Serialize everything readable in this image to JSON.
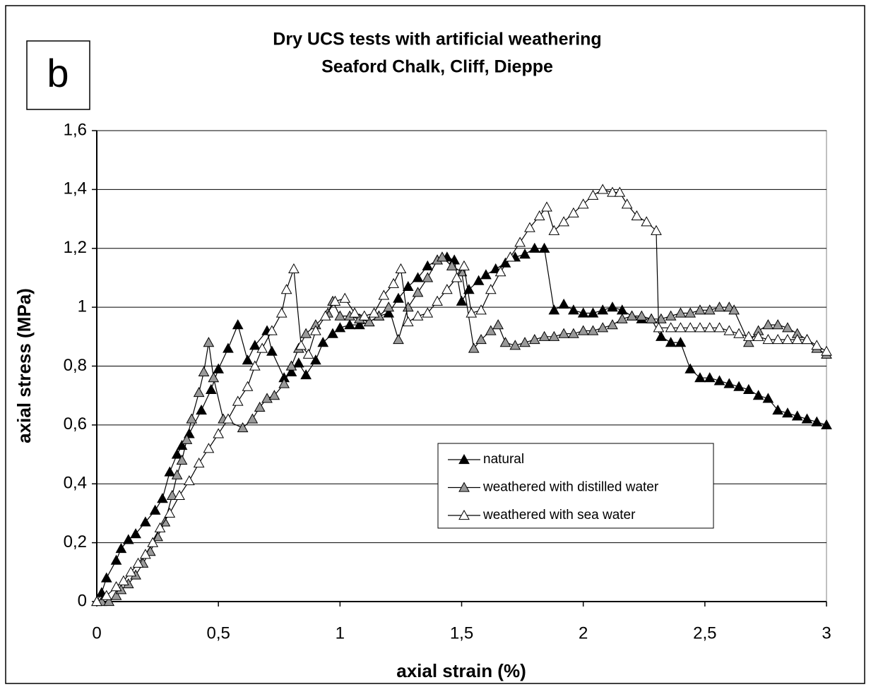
{
  "chart_data": {
    "type": "line",
    "panel_label": "b",
    "title": [
      "Dry UCS tests with artificial weathering",
      "Seaford Chalk, Cliff, Dieppe"
    ],
    "x_label": "axial strain (%)",
    "y_label": "axial stress (MPa)",
    "xlim": [
      0,
      3
    ],
    "ylim": [
      0,
      1.6
    ],
    "xticks": [
      0,
      {
        "value": 0.5,
        "label": "0,5"
      },
      1,
      {
        "value": 1.5,
        "label": "1,5"
      },
      2,
      {
        "value": 2.5,
        "label": "2,5"
      },
      3
    ],
    "yticks": [
      0,
      {
        "value": 0.2,
        "label": "0,2"
      },
      {
        "value": 0.4,
        "label": "0,4"
      },
      {
        "value": 0.6,
        "label": "0,6"
      },
      {
        "value": 0.8,
        "label": "0,8"
      },
      1,
      {
        "value": 1.2,
        "label": "1,2"
      },
      {
        "value": 1.4,
        "label": "1,4"
      },
      {
        "value": 1.6,
        "label": "1,6"
      }
    ],
    "grid": true,
    "series": [
      {
        "name": "natural",
        "color": "#000000",
        "x": [
          0,
          0.02,
          0.04,
          0.08,
          0.1,
          0.13,
          0.16,
          0.2,
          0.24,
          0.27,
          0.3,
          0.33,
          0.35,
          0.38,
          0.43,
          0.47,
          0.5,
          0.54,
          0.58,
          0.62,
          0.65,
          0.7,
          0.72,
          0.77,
          0.8,
          0.83,
          0.86,
          0.9,
          0.93,
          0.97,
          1.0,
          1.04,
          1.08,
          1.12,
          1.16,
          1.2,
          1.24,
          1.28,
          1.32,
          1.36,
          1.4,
          1.44,
          1.47,
          1.5,
          1.53,
          1.57,
          1.6,
          1.64,
          1.68,
          1.72,
          1.76,
          1.8,
          1.84,
          1.88,
          1.92,
          1.96,
          2.0,
          2.04,
          2.08,
          2.12,
          2.16,
          2.2,
          2.24,
          2.28,
          2.32,
          2.36,
          2.4,
          2.44,
          2.48,
          2.52,
          2.56,
          2.6,
          2.64,
          2.68,
          2.72,
          2.76,
          2.8,
          2.84,
          2.88,
          2.92,
          2.96,
          3.0
        ],
        "values": [
          0,
          0.03,
          0.08,
          0.14,
          0.18,
          0.21,
          0.23,
          0.27,
          0.31,
          0.35,
          0.44,
          0.5,
          0.53,
          0.57,
          0.65,
          0.72,
          0.79,
          0.86,
          0.94,
          0.82,
          0.87,
          0.92,
          0.85,
          0.76,
          0.78,
          0.81,
          0.77,
          0.82,
          0.88,
          0.91,
          0.93,
          0.94,
          0.94,
          0.95,
          0.97,
          0.98,
          1.03,
          1.07,
          1.1,
          1.14,
          1.16,
          1.17,
          1.16,
          1.02,
          1.06,
          1.09,
          1.11,
          1.13,
          1.15,
          1.17,
          1.18,
          1.2,
          1.2,
          0.99,
          1.01,
          0.99,
          0.98,
          0.98,
          0.99,
          1.0,
          0.99,
          0.97,
          0.96,
          0.96,
          0.9,
          0.88,
          0.88,
          0.79,
          0.76,
          0.76,
          0.75,
          0.74,
          0.73,
          0.72,
          0.7,
          0.69,
          0.65,
          0.64,
          0.63,
          0.62,
          0.61,
          0.6
        ]
      },
      {
        "name": "weathered with distilled water",
        "color": "#999999",
        "x": [
          0.02,
          0.05,
          0.08,
          0.1,
          0.13,
          0.16,
          0.19,
          0.22,
          0.25,
          0.28,
          0.31,
          0.33,
          0.35,
          0.37,
          0.39,
          0.42,
          0.44,
          0.46,
          0.48,
          0.52,
          0.6,
          0.64,
          0.67,
          0.7,
          0.73,
          0.77,
          0.8,
          0.83,
          0.86,
          0.9,
          0.95,
          0.97,
          1.0,
          1.04,
          1.08,
          1.12,
          1.16,
          1.2,
          1.24,
          1.28,
          1.32,
          1.36,
          1.4,
          1.42,
          1.46,
          1.5,
          1.55,
          1.58,
          1.62,
          1.65,
          1.68,
          1.72,
          1.76,
          1.8,
          1.84,
          1.88,
          1.92,
          1.96,
          2.0,
          2.04,
          2.08,
          2.12,
          2.16,
          2.2,
          2.24,
          2.28,
          2.32,
          2.36,
          2.4,
          2.44,
          2.48,
          2.52,
          2.56,
          2.6,
          2.62,
          2.68,
          2.72,
          2.76,
          2.8,
          2.84,
          2.88,
          2.92,
          2.96,
          3.0
        ],
        "values": [
          0,
          0,
          0.02,
          0.04,
          0.06,
          0.09,
          0.13,
          0.17,
          0.22,
          0.27,
          0.36,
          0.43,
          0.48,
          0.55,
          0.62,
          0.71,
          0.78,
          0.88,
          0.76,
          0.62,
          0.59,
          0.62,
          0.66,
          0.69,
          0.7,
          0.74,
          0.8,
          0.86,
          0.91,
          0.94,
          0.98,
          1.02,
          0.97,
          0.97,
          0.96,
          0.95,
          0.97,
          1.0,
          0.89,
          1.0,
          1.05,
          1.1,
          1.16,
          1.17,
          1.14,
          1.12,
          0.86,
          0.89,
          0.92,
          0.94,
          0.88,
          0.87,
          0.88,
          0.89,
          0.9,
          0.9,
          0.91,
          0.91,
          0.92,
          0.92,
          0.93,
          0.94,
          0.96,
          0.97,
          0.97,
          0.96,
          0.96,
          0.97,
          0.98,
          0.98,
          0.99,
          0.99,
          1.0,
          1.0,
          0.99,
          0.88,
          0.92,
          0.94,
          0.94,
          0.93,
          0.91,
          0.89,
          0.86,
          0.84
        ]
      },
      {
        "name": "weathered with sea water",
        "color": "#ffffff",
        "x": [
          0.0,
          0.04,
          0.08,
          0.11,
          0.14,
          0.17,
          0.2,
          0.23,
          0.26,
          0.3,
          0.34,
          0.38,
          0.42,
          0.46,
          0.5,
          0.54,
          0.58,
          0.62,
          0.65,
          0.68,
          0.72,
          0.76,
          0.78,
          0.81,
          0.84,
          0.87,
          0.9,
          0.94,
          0.98,
          1.02,
          1.06,
          1.1,
          1.14,
          1.18,
          1.22,
          1.25,
          1.28,
          1.32,
          1.36,
          1.4,
          1.44,
          1.48,
          1.51,
          1.54,
          1.58,
          1.62,
          1.66,
          1.7,
          1.74,
          1.78,
          1.82,
          1.85,
          1.88,
          1.92,
          1.96,
          2.0,
          2.04,
          2.08,
          2.12,
          2.15,
          2.18,
          2.22,
          2.26,
          2.3,
          2.31,
          2.36,
          2.4,
          2.44,
          2.48,
          2.52,
          2.56,
          2.6,
          2.64,
          2.68,
          2.72,
          2.76,
          2.8,
          2.84,
          2.88,
          2.92,
          2.96,
          3.0
        ],
        "values": [
          0.0,
          0.02,
          0.05,
          0.07,
          0.1,
          0.13,
          0.16,
          0.2,
          0.25,
          0.3,
          0.36,
          0.41,
          0.47,
          0.52,
          0.57,
          0.62,
          0.68,
          0.73,
          0.8,
          0.86,
          0.92,
          0.98,
          1.06,
          1.13,
          0.87,
          0.84,
          0.92,
          0.97,
          1.02,
          1.03,
          0.98,
          0.97,
          0.98,
          1.04,
          1.08,
          1.13,
          0.95,
          0.97,
          0.98,
          1.02,
          1.06,
          1.1,
          1.14,
          0.98,
          0.99,
          1.06,
          1.12,
          1.17,
          1.22,
          1.27,
          1.31,
          1.34,
          1.26,
          1.29,
          1.32,
          1.35,
          1.38,
          1.4,
          1.39,
          1.39,
          1.35,
          1.31,
          1.29,
          1.26,
          0.93,
          0.93,
          0.93,
          0.93,
          0.93,
          0.93,
          0.93,
          0.92,
          0.91,
          0.9,
          0.9,
          0.89,
          0.89,
          0.89,
          0.89,
          0.89,
          0.87,
          0.85
        ]
      }
    ]
  }
}
